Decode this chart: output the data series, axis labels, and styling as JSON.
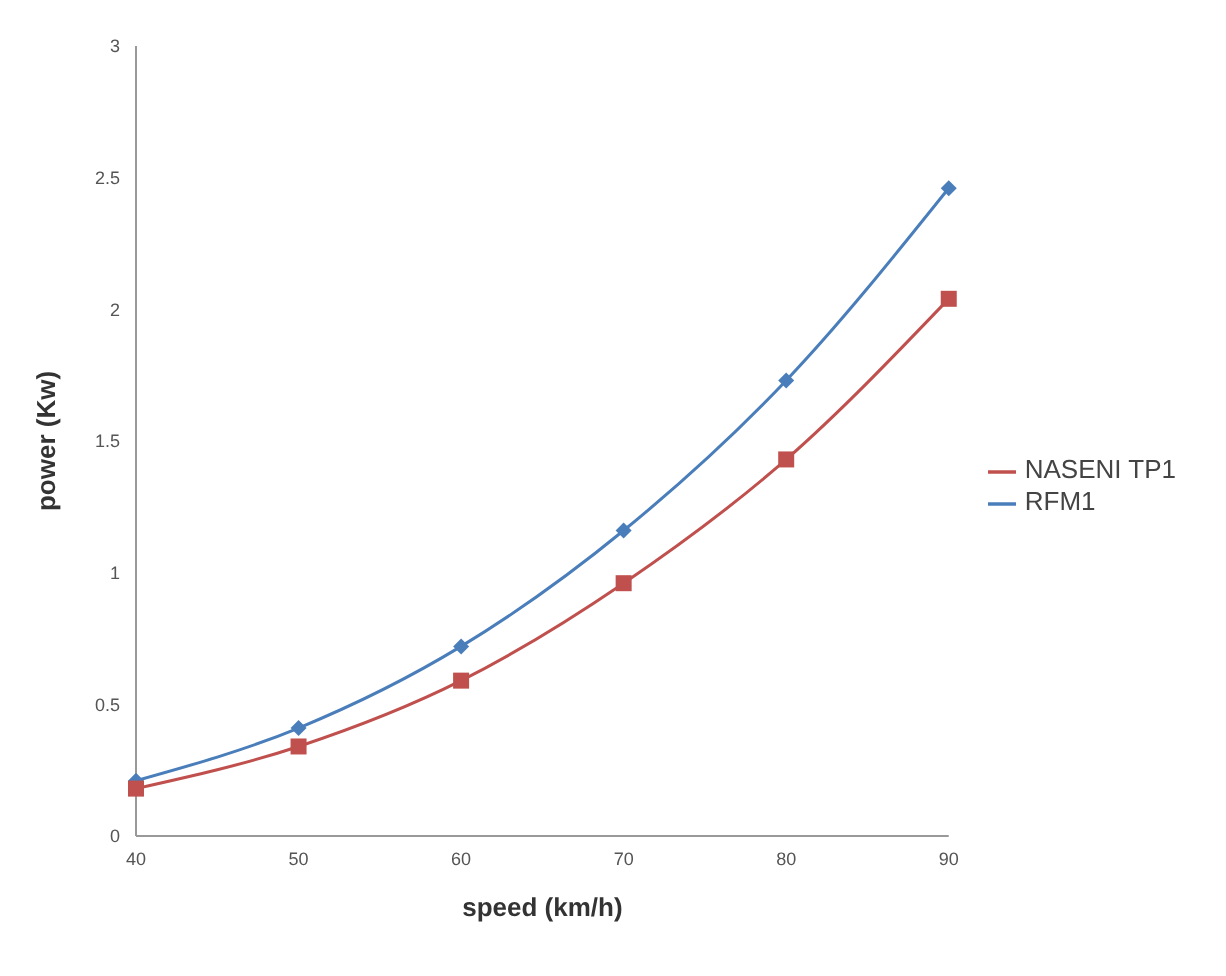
{
  "chart_data": {
    "type": "line",
    "xlabel": "speed (km/h)",
    "ylabel": "power (Kw)",
    "categories": [
      "40",
      "50",
      "60",
      "70",
      "80",
      "90"
    ],
    "series": [
      {
        "name": "RFM1",
        "color": "#4a7ebb",
        "marker": "diamond",
        "values": [
          0.21,
          0.41,
          0.72,
          1.16,
          1.73,
          2.46
        ]
      },
      {
        "name": "NASENI TP1",
        "color": "#c0504d",
        "marker": "square",
        "values": [
          0.18,
          0.34,
          0.59,
          0.96,
          1.43,
          2.04
        ]
      }
    ],
    "ylim": [
      0,
      3
    ],
    "yticks": [
      0,
      0.5,
      1,
      1.5,
      2,
      2.5,
      3
    ],
    "grid": false,
    "legend": "right"
  }
}
